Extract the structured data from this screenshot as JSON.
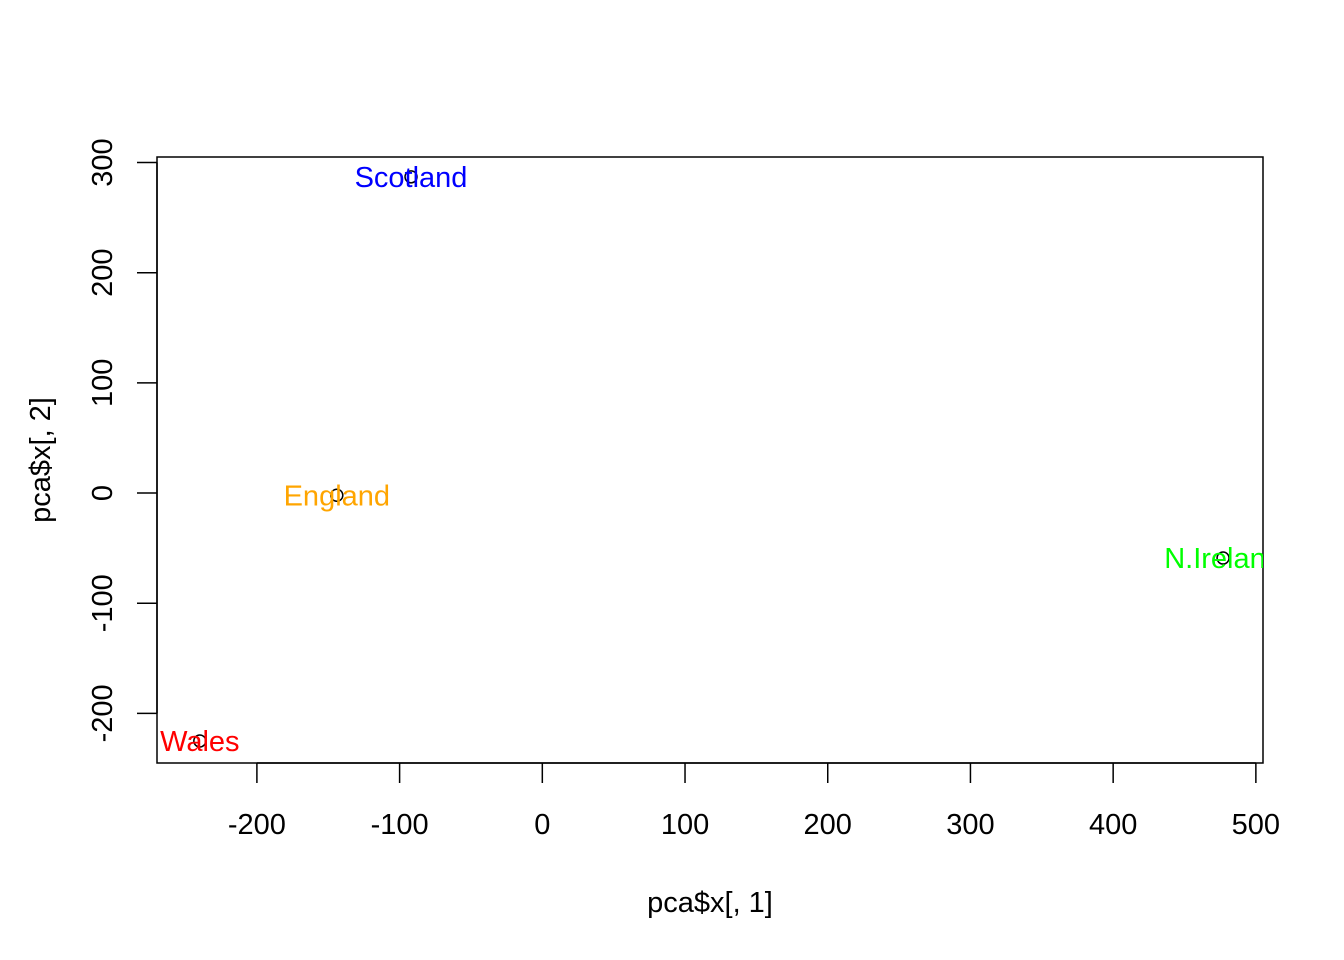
{
  "chart_data": {
    "type": "scatter",
    "xlabel": "pca$x[, 1]",
    "ylabel": "pca$x[, 2]",
    "xlim": [
      -270,
      505
    ],
    "ylim": [
      -245,
      305
    ],
    "x_ticks": [
      -200,
      -100,
      0,
      100,
      200,
      300,
      400,
      500
    ],
    "y_ticks": [
      -200,
      -100,
      0,
      100,
      200,
      300
    ],
    "x_tick_labels": [
      "-200",
      "-100",
      "0",
      "100",
      "200",
      "300",
      "400",
      "500"
    ],
    "y_tick_labels": [
      "-200",
      "-100",
      "0",
      "100",
      "200",
      "300"
    ],
    "grid": false,
    "legend": "none",
    "points": [
      {
        "label": "England",
        "x": -144,
        "y": -2,
        "color": "#FFA500"
      },
      {
        "label": "Wales",
        "x": -240,
        "y": -225,
        "color": "#FF0000"
      },
      {
        "label": "Scotland",
        "x": -92,
        "y": 287,
        "color": "#0000FF"
      },
      {
        "label": "N.Ireland",
        "x": 477,
        "y": -59,
        "color": "#00FF00"
      }
    ]
  }
}
